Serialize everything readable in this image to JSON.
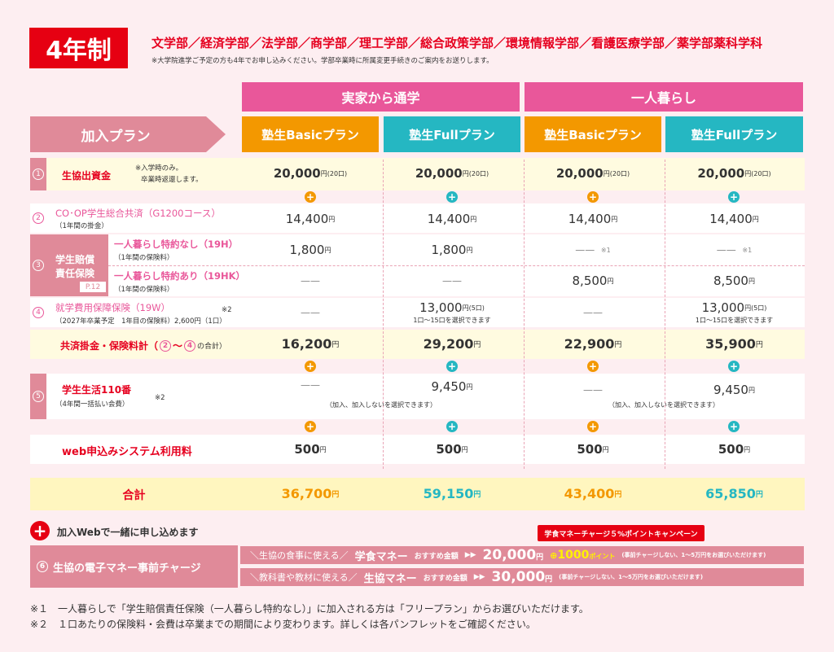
{
  "header": {
    "badge": "4年制",
    "faculties": "文学部／経済学部／法学部／商学部／理工学部／総合政策学部／環境情報学部／看護医療学部／薬学部薬科学科",
    "note": "※大学院進学ご予定の方も4年でお申し込みください。学部卒業時に所属変更手続きのご案内をお送りします。"
  },
  "groups": [
    "実家から通学",
    "一人暮らし"
  ],
  "plan_label": "加入プラン",
  "plans": [
    "塾生Basicプラン",
    "塾生Fullプラン",
    "塾生Basicプラン",
    "塾生Fullプラン"
  ],
  "rows": {
    "r1": {
      "num": "1",
      "label": "生協出資金",
      "note1": "※入学時のみ。",
      "note2": "卒業時返還します。",
      "vals": [
        "20,000",
        "20,000",
        "20,000",
        "20,000"
      ],
      "unit": "円(20口)"
    },
    "r2": {
      "num": "2",
      "label": "CO･OP学生総合共済（G1200コース）",
      "sub": "（1年間の掛金）",
      "vals": [
        "14,400",
        "14,400",
        "14,400",
        "14,400"
      ],
      "unit": "円"
    },
    "r3": {
      "num": "3",
      "label1": "学生賠償",
      "label2": "責任保険",
      "page": "P.12",
      "a": {
        "label": "一人暮らし特約なし（19H）",
        "sub": "（1年間の保険料）",
        "vals": [
          "1,800",
          "1,800",
          "——",
          "——"
        ],
        "note": "※1",
        "unit": "円"
      },
      "b": {
        "label": "一人暮らし特約あり（19HK）",
        "sub": "（1年間の保険料）",
        "vals": [
          "——",
          "——",
          "8,500",
          "8,500"
        ],
        "unit": "円"
      }
    },
    "r4": {
      "num": "4",
      "label": "就学費用保障保険（19W）",
      "note": "※2",
      "sub": "（2027年卒業予定　1年目の保険料）2,600円（1口）",
      "vals": [
        "——",
        "13,000",
        "——",
        "13,000"
      ],
      "unit": "円(5口)",
      "choose": "1口〜15口を選択できます"
    },
    "sub1": {
      "label": "共済掛金・保険料計（",
      "r2": "2",
      "tilde": "〜",
      "r4": "4",
      "suffix": "の合計）",
      "vals": [
        "16,200",
        "29,200",
        "22,900",
        "35,900"
      ],
      "unit": "円"
    },
    "r5": {
      "num": "5",
      "label": "学生生活110番",
      "note": "※2",
      "sub": "（4年間一括払い会費）",
      "vals": [
        "——",
        "9,450",
        "——",
        "9,450"
      ],
      "unit": "円",
      "choose": "（加入、加入しないを選択できます）"
    },
    "web": {
      "label": "web申込みシステム利用料",
      "vals": [
        "500",
        "500",
        "500",
        "500"
      ],
      "unit": "円"
    },
    "total": {
      "label": "合計",
      "vals": [
        "36,700",
        "59,150",
        "43,400",
        "65,850"
      ],
      "unit": "円",
      "colors": [
        "#f39800",
        "#25b7c2",
        "#f39800",
        "#25b7c2"
      ]
    }
  },
  "charge": {
    "plus_icon": "+",
    "intro": "加入Webで一緒に申し込めます",
    "num": "6",
    "label": "生協の電子マネー事前チャージ",
    "campaign": "学食マネーチャージ５%ポイントキャンペーン",
    "line1": {
      "use": "＼生協の食事に使える／",
      "name": "学食マネー",
      "rec": "おすすめ金額",
      "arrows": "▶▶",
      "amount": "20,000",
      "unit": "円",
      "bonus": "1000",
      "bonus_unit": "ポイント",
      "note": "(事前チャージしない、1〜5万円をお選びいただけます)"
    },
    "line2": {
      "use": "＼教科書や教材に使える／",
      "name": "生協マネー",
      "rec": "おすすめ金額",
      "arrows": "▶▶",
      "amount": "30,000",
      "unit": "円",
      "note": "(事前チャージしない、1〜5万円をお選びいただけます)"
    }
  },
  "footnotes": [
    "※１　一人暮らしで「学生賠償責任保険（一人暮らし特約なし）」に加入される方は「フリープラン」からお選びいただけます。",
    "※２　１口あたりの保険料・会費は卒業までの期間により変わります。詳しくは各パンフレットをご確認ください。"
  ],
  "colors": {
    "orange": "#f39800",
    "teal": "#25b7c2",
    "pink": "#e9579a",
    "red": "#e60012"
  }
}
